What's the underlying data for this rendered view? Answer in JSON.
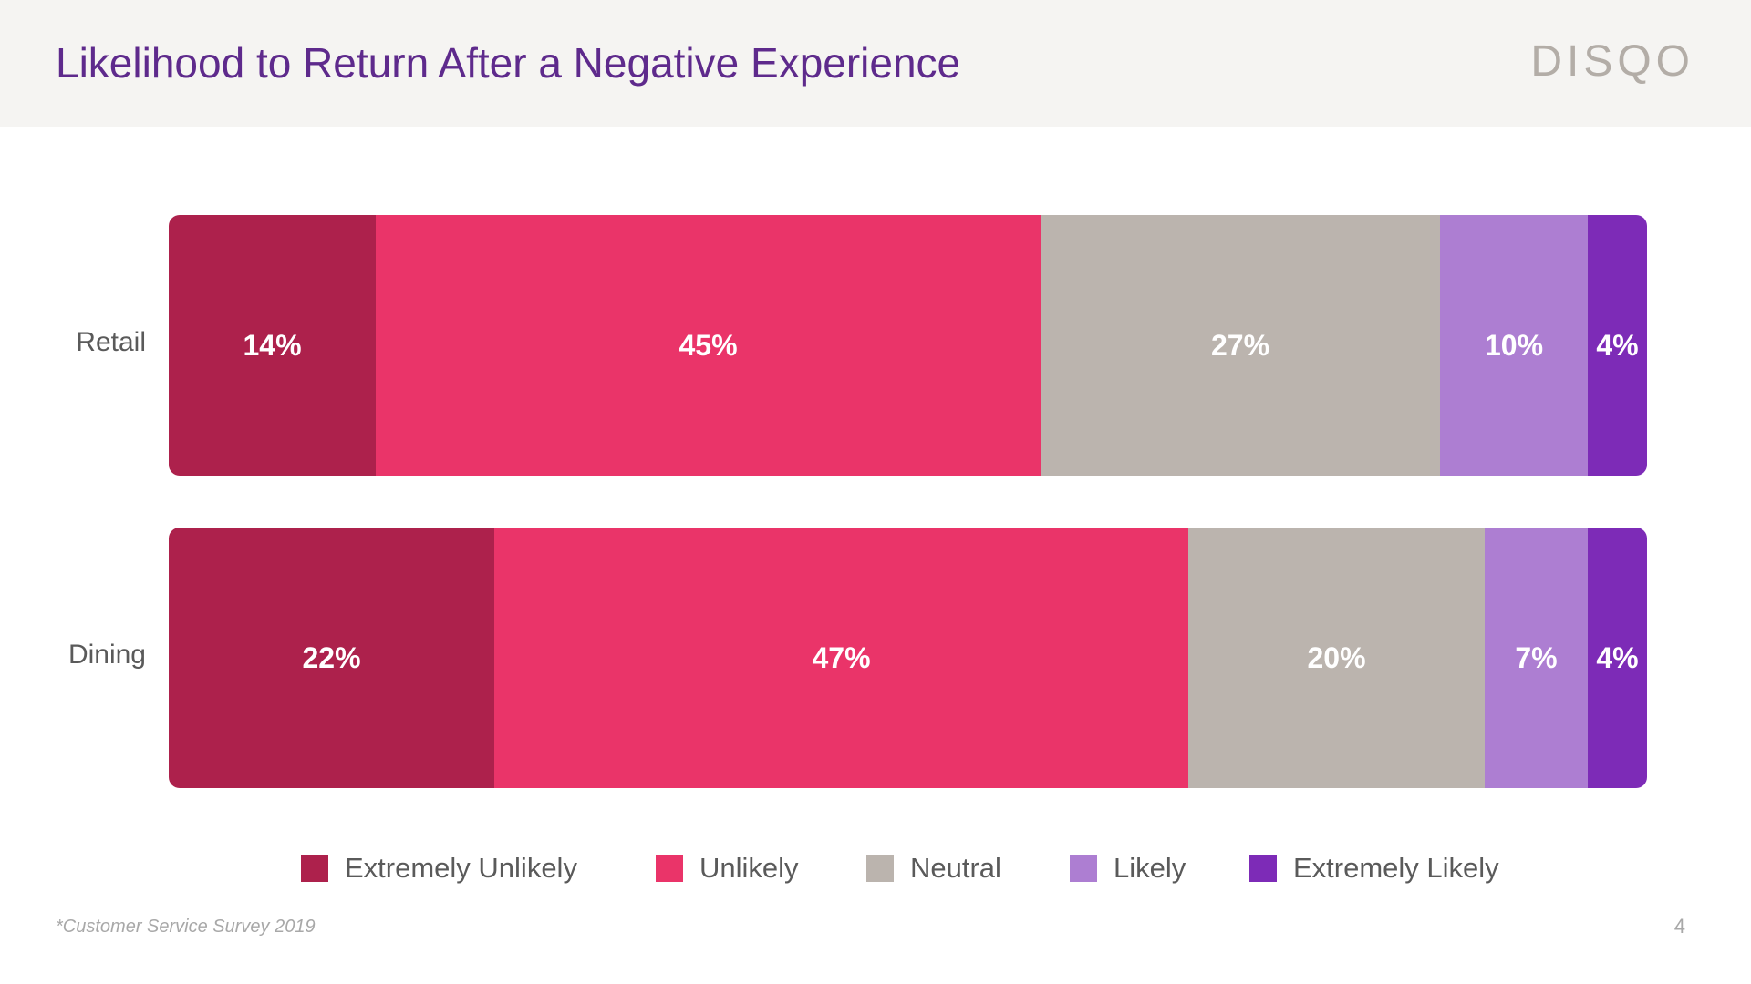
{
  "header": {
    "title": "Likelihood to Return After a Negative Experience",
    "logo": "DISQO"
  },
  "colors": {
    "title": "#5e2a8c",
    "header_bg": "#f5f4f2",
    "extremely_unlikely": "#ad214c",
    "unlikely": "#ea3469",
    "neutral": "#bbb4ae",
    "likely": "#ad7ed2",
    "extremely_likely": "#7d2bb7"
  },
  "chart_data": {
    "type": "bar",
    "orientation": "horizontal",
    "stacked": true,
    "categories": [
      "Retail",
      "Dining"
    ],
    "series": [
      {
        "name": "Extremely Unlikely",
        "color": "#ad214c",
        "values": [
          14,
          22
        ],
        "labels": [
          "14%",
          "22%"
        ]
      },
      {
        "name": "Unlikely",
        "color": "#ea3469",
        "values": [
          45,
          47
        ],
        "labels": [
          "45%",
          "47%"
        ]
      },
      {
        "name": "Neutral",
        "color": "#bbb4ae",
        "values": [
          27,
          20
        ],
        "labels": [
          "27%",
          "20%"
        ]
      },
      {
        "name": "Likely",
        "color": "#ad7ed2",
        "values": [
          10,
          7
        ],
        "labels": [
          "10%",
          "7%"
        ]
      },
      {
        "name": "Extremely Likely",
        "color": "#7d2bb7",
        "values": [
          4,
          4
        ],
        "labels": [
          "4%",
          "4%"
        ]
      }
    ],
    "unit": "%",
    "legend_position": "bottom",
    "grid": false
  },
  "footer": {
    "note": "*Customer Service Survey 2019",
    "page_number": "4"
  }
}
